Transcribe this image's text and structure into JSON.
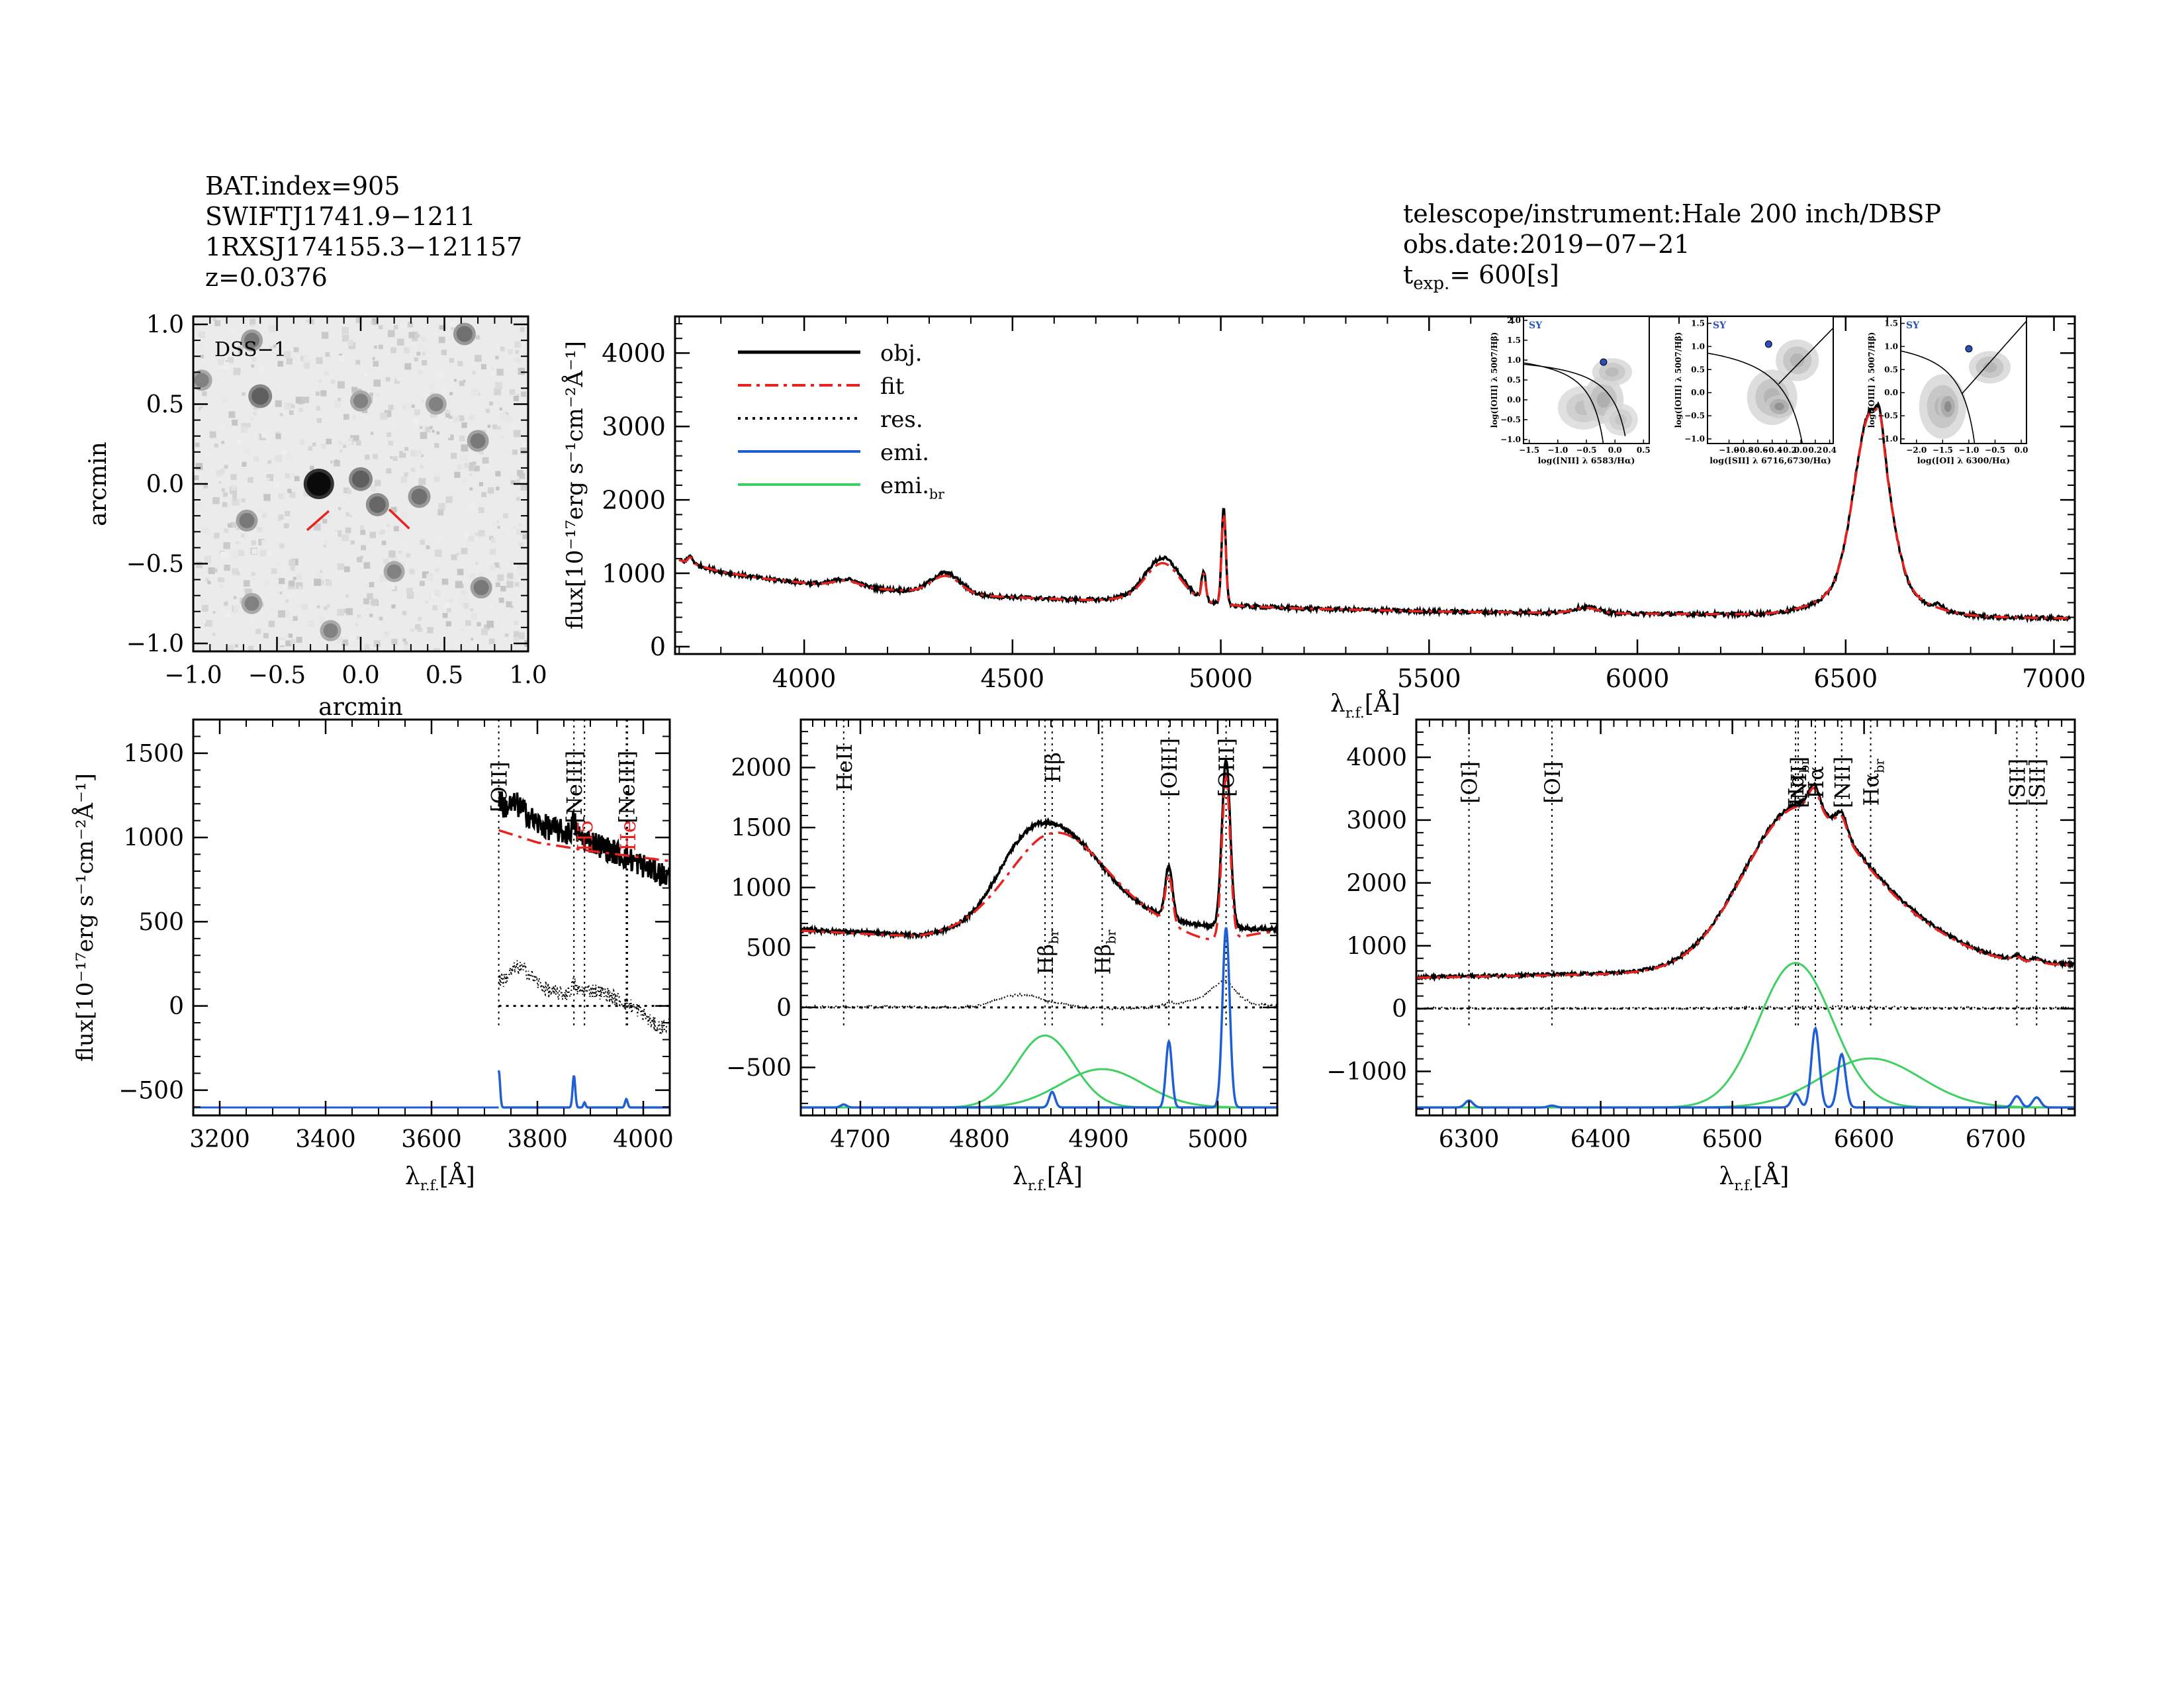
{
  "header": {
    "bat_index": "BAT.index=905",
    "swift_name": "SWIFTJ1741.9−1211",
    "counterpart": "1RXSJ174155.3−121157",
    "redshift": "z=0.0376",
    "instrument": "telescope/instrument:Hale 200 inch/DBSP",
    "obs_date": "obs.date:2019−07−21",
    "texp_prefix": "t",
    "texp_sub": "exp.",
    "texp_value": "= 600[s]"
  },
  "colors": {
    "obj": "#000000",
    "fit": "#e8231f",
    "res": "#000000",
    "emi": "#1f5fd6",
    "emi_br": "#3fcf62",
    "bpt_point": "#2b4fbf"
  },
  "chart_data": [
    {
      "id": "image",
      "type": "heatmap",
      "label": "DSS−1",
      "xlabel": "arcmin",
      "ylabel": "arcmin",
      "xlim": [
        -1.0,
        1.0
      ],
      "ylim": [
        -1.05,
        1.05
      ],
      "xticks": [
        "−1.0",
        "−0.5",
        "0.0",
        "0.5",
        "1.0"
      ],
      "yticks": [
        "−1.0",
        "−0.5",
        "0.0",
        "0.5",
        "1.0"
      ],
      "sources": [
        {
          "x": -0.25,
          "y": 0.0,
          "b": 1.0
        },
        {
          "x": 0.0,
          "y": 0.03,
          "b": 0.5
        },
        {
          "x": 0.1,
          "y": -0.13,
          "b": 0.45
        },
        {
          "x": 0.35,
          "y": -0.08,
          "b": 0.4
        },
        {
          "x": -0.6,
          "y": 0.55,
          "b": 0.5
        },
        {
          "x": -0.68,
          "y": -0.23,
          "b": 0.35
        },
        {
          "x": -0.65,
          "y": 0.9,
          "b": 0.35
        },
        {
          "x": 0.62,
          "y": 0.94,
          "b": 0.4
        },
        {
          "x": 0.0,
          "y": 0.52,
          "b": 0.3
        },
        {
          "x": 0.7,
          "y": 0.27,
          "b": 0.35
        },
        {
          "x": 0.72,
          "y": -0.65,
          "b": 0.35
        },
        {
          "x": -0.65,
          "y": -0.75,
          "b": 0.3
        },
        {
          "x": 0.2,
          "y": -0.55,
          "b": 0.3
        },
        {
          "x": -0.18,
          "y": -0.92,
          "b": 0.3
        },
        {
          "x": 0.45,
          "y": 0.5,
          "b": 0.3
        },
        {
          "x": -0.95,
          "y": 0.65,
          "b": 0.3
        }
      ],
      "markers": [
        {
          "x1": -0.32,
          "y1": -0.29,
          "x2": -0.19,
          "y2": -0.17
        },
        {
          "x1": 0.17,
          "y1": -0.16,
          "x2": 0.29,
          "y2": -0.28
        }
      ]
    },
    {
      "id": "main",
      "type": "line",
      "xlabel": "λ",
      "xlabel_sub": "r.f.",
      "xlabel_unit": "[Å]",
      "ylabel": "flux[10⁻¹⁷erg s⁻¹cm⁻²Å⁻¹]",
      "xlim": [
        3690,
        7050
      ],
      "ylim": [
        -100,
        4500
      ],
      "xticks": [
        4000,
        4500,
        5000,
        5500,
        6000,
        6500,
        7000
      ],
      "yticks": [
        0,
        1000,
        2000,
        3000,
        4000
      ],
      "legend": [
        {
          "name": "obj.",
          "series": "obj"
        },
        {
          "name": "fit",
          "series": "fit"
        },
        {
          "name": "res.",
          "series": "res"
        },
        {
          "name": "emi.",
          "series": "emi"
        },
        {
          "name": "emi.",
          "name_sub": "br",
          "series": "emi_br"
        }
      ],
      "continuum": [
        [
          3700,
          1180
        ],
        [
          3800,
          1020
        ],
        [
          3900,
          930
        ],
        [
          4000,
          870
        ],
        [
          4100,
          820
        ],
        [
          4200,
          780
        ],
        [
          4400,
          700
        ],
        [
          4600,
          650
        ],
        [
          4800,
          600
        ],
        [
          5000,
          560
        ],
        [
          5200,
          520
        ],
        [
          5500,
          480
        ],
        [
          6000,
          450
        ],
        [
          6500,
          430
        ],
        [
          7000,
          390
        ]
      ],
      "obj_gaussians": [
        {
          "c": 6562,
          "a": 2400,
          "s": 40
        },
        {
          "c": 6562,
          "a": 400,
          "s": 100
        },
        {
          "c": 4861,
          "a": 500,
          "s": 40
        },
        {
          "c": 4861,
          "a": 120,
          "s": 80
        },
        {
          "c": 5007,
          "a": 1300,
          "s": 5
        },
        {
          "c": 4959,
          "a": 380,
          "s": 5
        },
        {
          "c": 4340,
          "a": 280,
          "s": 35
        },
        {
          "c": 4101,
          "a": 100,
          "s": 30
        },
        {
          "c": 5876,
          "a": 80,
          "s": 30
        },
        {
          "c": 3727,
          "a": 100,
          "s": 6
        },
        {
          "c": 6583,
          "a": 300,
          "s": 8
        },
        {
          "c": 6716,
          "a": 60,
          "s": 6
        },
        {
          "c": 6731,
          "a": 55,
          "s": 6
        }
      ],
      "fit_gaussians": [
        {
          "c": 6562,
          "a": 2350,
          "s": 40
        },
        {
          "c": 6562,
          "a": 420,
          "s": 100
        },
        {
          "c": 4861,
          "a": 450,
          "s": 40
        },
        {
          "c": 4861,
          "a": 100,
          "s": 80
        },
        {
          "c": 5007,
          "a": 1250,
          "s": 5
        },
        {
          "c": 4959,
          "a": 360,
          "s": 5
        },
        {
          "c": 4340,
          "a": 240,
          "s": 35
        },
        {
          "c": 4101,
          "a": 80,
          "s": 30
        },
        {
          "c": 5876,
          "a": 70,
          "s": 30
        },
        {
          "c": 3727,
          "a": 80,
          "s": 6
        },
        {
          "c": 6583,
          "a": 280,
          "s": 8
        }
      ],
      "noise": 25,
      "bpt": [
        {
          "xlabel": "log([NII] λ 6583/Hα)",
          "ylabel": "log([OIII] λ 5007/Hβ)",
          "xlim": [
            -1.6,
            0.6
          ],
          "ylim": [
            -1.1,
            2.1
          ],
          "xticks": [
            -1.5,
            -1.0,
            -0.5,
            0.0,
            0.5
          ],
          "yticks": [
            -1.0,
            -0.5,
            0.0,
            0.5,
            1.0,
            1.5,
            2.0
          ],
          "point": {
            "x": -0.2,
            "y": 0.95
          },
          "tag": "SY"
        },
        {
          "xlabel": "log([SII] λ 6716,6730/Hα)",
          "ylabel": "log([OIII] λ 5007/Hβ)",
          "xlim": [
            -1.3,
            0.45
          ],
          "ylim": [
            -1.1,
            1.65
          ],
          "xticks": [
            -1.0,
            -0.8,
            -0.6,
            -0.4,
            -0.2,
            0.0,
            0.2,
            0.4
          ],
          "yticks": [
            -1.0,
            -0.5,
            0.0,
            0.5,
            1.0,
            1.5
          ],
          "point": {
            "x": -0.45,
            "y": 1.05
          },
          "tag": "SY"
        },
        {
          "xlabel": "log([OI] λ 6300/Hα)",
          "ylabel": "log([OIII] λ 5007/Hβ)",
          "xlim": [
            -2.3,
            0.1
          ],
          "ylim": [
            -1.1,
            1.65
          ],
          "xticks": [
            -2.0,
            -1.5,
            -1.0,
            -0.5,
            0.0
          ],
          "yticks": [
            -1.0,
            -0.5,
            0.0,
            0.5,
            1.0,
            1.5
          ],
          "point": {
            "x": -1.0,
            "y": 0.95
          },
          "tag": "SY"
        }
      ]
    },
    {
      "id": "zoom1",
      "type": "line",
      "xlabel": "λ",
      "xlabel_sub": "r.f.",
      "xlabel_unit": "[Å]",
      "ylabel": "flux[10⁻¹⁷erg s⁻¹cm⁻²Å⁻¹]",
      "xlim": [
        3150,
        4050
      ],
      "ylim": [
        -650,
        1700
      ],
      "xticks": [
        3200,
        3400,
        3600,
        3800,
        4000
      ],
      "yticks": [
        -500,
        0,
        500,
        1000,
        1500
      ],
      "data_start": 3727,
      "labels": [
        {
          "x": 3727,
          "text": "[OII]",
          "color": "#000000",
          "y": 1300
        },
        {
          "x": 3869,
          "text": "[NeIII]",
          "color": "#000000",
          "y": 1300
        },
        {
          "x": 3968,
          "text": "[NeIII]",
          "color": "#000000",
          "y": 1300
        },
        {
          "x": 3889,
          "text": "H5",
          "color": "#e8231f",
          "y": 1010
        },
        {
          "x": 3970,
          "text": "He",
          "color": "#e8231f",
          "y": 1010
        }
      ]
    },
    {
      "id": "zoom2",
      "type": "line",
      "xlabel": "λ",
      "xlabel_sub": "r.f.",
      "xlabel_unit": "[Å]",
      "xlim": [
        4650,
        5050
      ],
      "ylim": [
        -900,
        2400
      ],
      "xticks": [
        4700,
        4800,
        4900,
        5000
      ],
      "yticks": [
        -500,
        0,
        500,
        1000,
        1500,
        2000
      ],
      "labels": [
        {
          "x": 4686,
          "text": "HeII",
          "color": "#000000",
          "y": 2000
        },
        {
          "x": 4861,
          "text": "Hβ",
          "color": "#000000",
          "y": 2000
        },
        {
          "x": 4959,
          "text": "[OIII]",
          "color": "#000000",
          "y": 2000
        },
        {
          "x": 5007,
          "text": "[OIII]",
          "color": "#000000",
          "y": 2000
        },
        {
          "x": 4855,
          "text": "Hβ",
          "sub": "br",
          "color": "#000000",
          "y": 460
        },
        {
          "x": 4903,
          "text": "Hβ",
          "sub": "br",
          "color": "#000000",
          "y": 460
        }
      ]
    },
    {
      "id": "zoom3",
      "type": "line",
      "xlabel": "λ",
      "xlabel_sub": "r.f.",
      "xlabel_unit": "[Å]",
      "xlim": [
        6260,
        6760
      ],
      "ylim": [
        -1700,
        4600
      ],
      "xticks": [
        6300,
        6400,
        6500,
        6600,
        6700
      ],
      "yticks": [
        -1000,
        0,
        1000,
        2000,
        3000,
        4000
      ],
      "labels": [
        {
          "x": 6300,
          "text": "[OI]",
          "color": "#000000",
          "y": 3600
        },
        {
          "x": 6363,
          "text": "[OI]",
          "color": "#000000",
          "y": 3600
        },
        {
          "x": 6548,
          "text": "Hα",
          "sub": "br",
          "color": "#000000",
          "y": 3600
        },
        {
          "x": 6550,
          "text": "[NII]",
          "color": "#000000",
          "y": 3600
        },
        {
          "x": 6563,
          "text": "Hα",
          "color": "#000000",
          "y": 3600
        },
        {
          "x": 6583,
          "text": "[NII]",
          "color": "#000000",
          "y": 3600
        },
        {
          "x": 6605,
          "text": "Hα",
          "sub": "br",
          "color": "#000000",
          "y": 3600
        },
        {
          "x": 6716,
          "text": "[SII]",
          "color": "#000000",
          "y": 3600
        },
        {
          "x": 6731,
          "text": "[SII]",
          "color": "#000000",
          "y": 3600
        }
      ]
    }
  ]
}
